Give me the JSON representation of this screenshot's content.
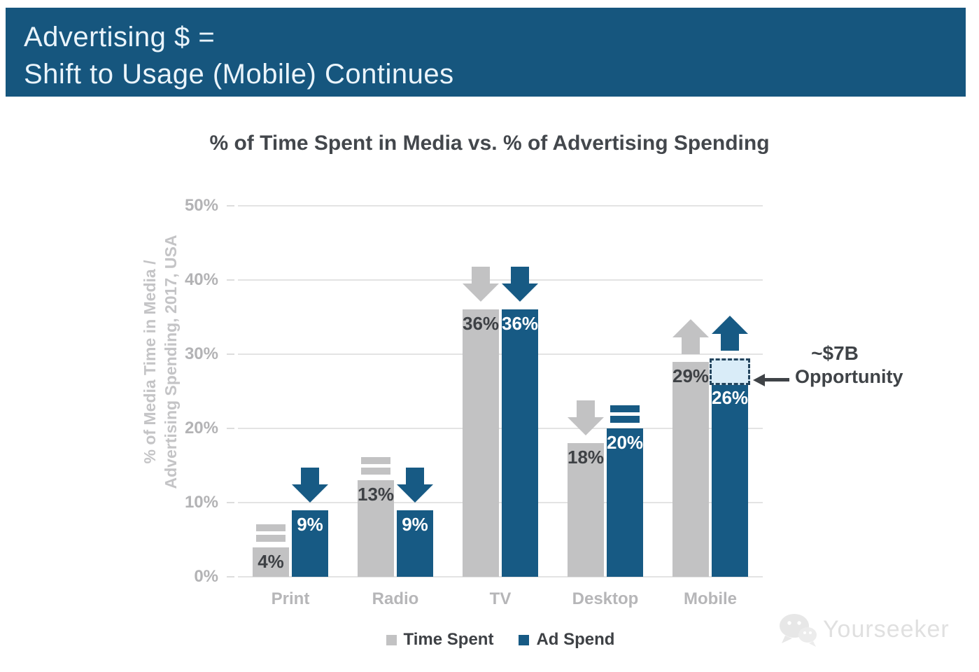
{
  "banner": {
    "line1": "Advertising $ =",
    "line2": "Shift to Usage (Mobile) Continues"
  },
  "chart_data": {
    "type": "bar",
    "title": "% of Time Spent in Media vs. % of Advertising Spending",
    "ylabel_line1": "% of Media Time in Media /",
    "ylabel_line2": "Advertising Spending, 2017, USA",
    "ylim": [
      0,
      50
    ],
    "ytick_values": [
      0,
      10,
      20,
      30,
      40,
      50
    ],
    "ytick_labels": [
      "0%",
      "10%",
      "20%",
      "30%",
      "40%",
      "50%"
    ],
    "grid": true,
    "legend_position": "bottom",
    "categories": [
      "Print",
      "Radio",
      "TV",
      "Desktop",
      "Mobile"
    ],
    "series": [
      {
        "name": "Time Spent",
        "color_key": "gray",
        "values": [
          4,
          13,
          36,
          18,
          29
        ],
        "labels": [
          "4%",
          "13%",
          "36%",
          "18%",
          "29%"
        ],
        "trends": [
          "flat",
          "flat",
          "down",
          "down",
          "up"
        ]
      },
      {
        "name": "Ad Spend",
        "color_key": "blue",
        "values": [
          9,
          9,
          36,
          20,
          26
        ],
        "labels": [
          "9%",
          "9%",
          "36%",
          "20%",
          "26%"
        ],
        "trends": [
          "down",
          "down",
          "down",
          "flat",
          "up"
        ]
      }
    ],
    "annotation": {
      "line1": "~$7B",
      "line2": "Opportunity",
      "category": "Mobile",
      "series": "Ad Spend",
      "box_top_value": 29.4
    },
    "legend": [
      {
        "label": "Time Spent",
        "color_key": "gray"
      },
      {
        "label": "Ad Spend",
        "color_key": "blue"
      }
    ]
  },
  "colors": {
    "banner_bg": "#16567E",
    "banner_text": "#EAF4FB",
    "blue": "#175A84",
    "gray": "#C2C2C3",
    "grid": "#E3E3E3",
    "tick_text": "#B3B3B5",
    "axis_label_text": "#C4C4C6",
    "category_text": "#B6B6B8",
    "value_dark": "#3E4145",
    "value_light": "#FFFFFF",
    "dashed_box_fill": "#D9ECF8",
    "dashed_box_border": "#24455E",
    "annotation_text": "#3F4347",
    "title_text": "#43474C",
    "legend_text": "#3E4145",
    "watermark": "#E0E0E0"
  },
  "watermark": {
    "text": "Yourseeker"
  }
}
